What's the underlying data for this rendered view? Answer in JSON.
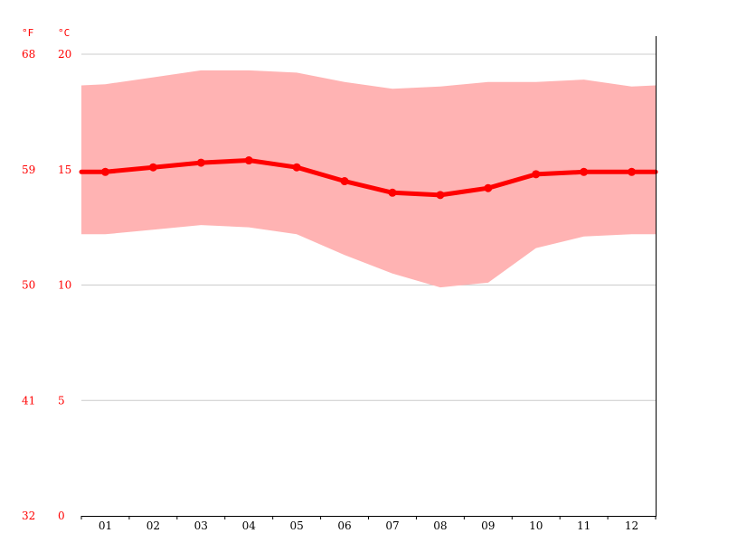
{
  "chart_data": {
    "type": "line",
    "unit_labels": {
      "fahrenheit": "°F",
      "celsius": "°C"
    },
    "categories": [
      "01",
      "02",
      "03",
      "04",
      "05",
      "06",
      "07",
      "08",
      "09",
      "10",
      "11",
      "12"
    ],
    "y_ticks": [
      {
        "celsius": "0",
        "fahrenheit": "32",
        "value": 0
      },
      {
        "celsius": "5",
        "fahrenheit": "41",
        "value": 5
      },
      {
        "celsius": "10",
        "fahrenheit": "50",
        "value": 10
      },
      {
        "celsius": "15",
        "fahrenheit": "59",
        "value": 15
      },
      {
        "celsius": "20",
        "fahrenheit": "68",
        "value": 20
      }
    ],
    "ylim": [
      0,
      20
    ],
    "grid": true,
    "series": [
      {
        "role": "mean",
        "values": [
          14.9,
          15.1,
          15.3,
          15.4,
          15.1,
          14.5,
          14.0,
          13.9,
          14.2,
          14.8,
          14.9,
          14.9
        ]
      },
      {
        "role": "max",
        "values": [
          18.7,
          19.0,
          19.3,
          19.3,
          19.2,
          18.8,
          18.5,
          18.6,
          18.8,
          18.8,
          18.9,
          18.6
        ]
      },
      {
        "role": "min",
        "values": [
          12.2,
          12.4,
          12.6,
          12.5,
          12.2,
          11.3,
          10.5,
          9.9,
          10.1,
          11.6,
          12.1,
          12.2
        ]
      }
    ],
    "colors": {
      "mean_line": "#ff0000",
      "band_fill": "#ffb3b3",
      "grid": "#cccccc",
      "axis": "#000000",
      "tick_labels": "#ff0000"
    }
  }
}
